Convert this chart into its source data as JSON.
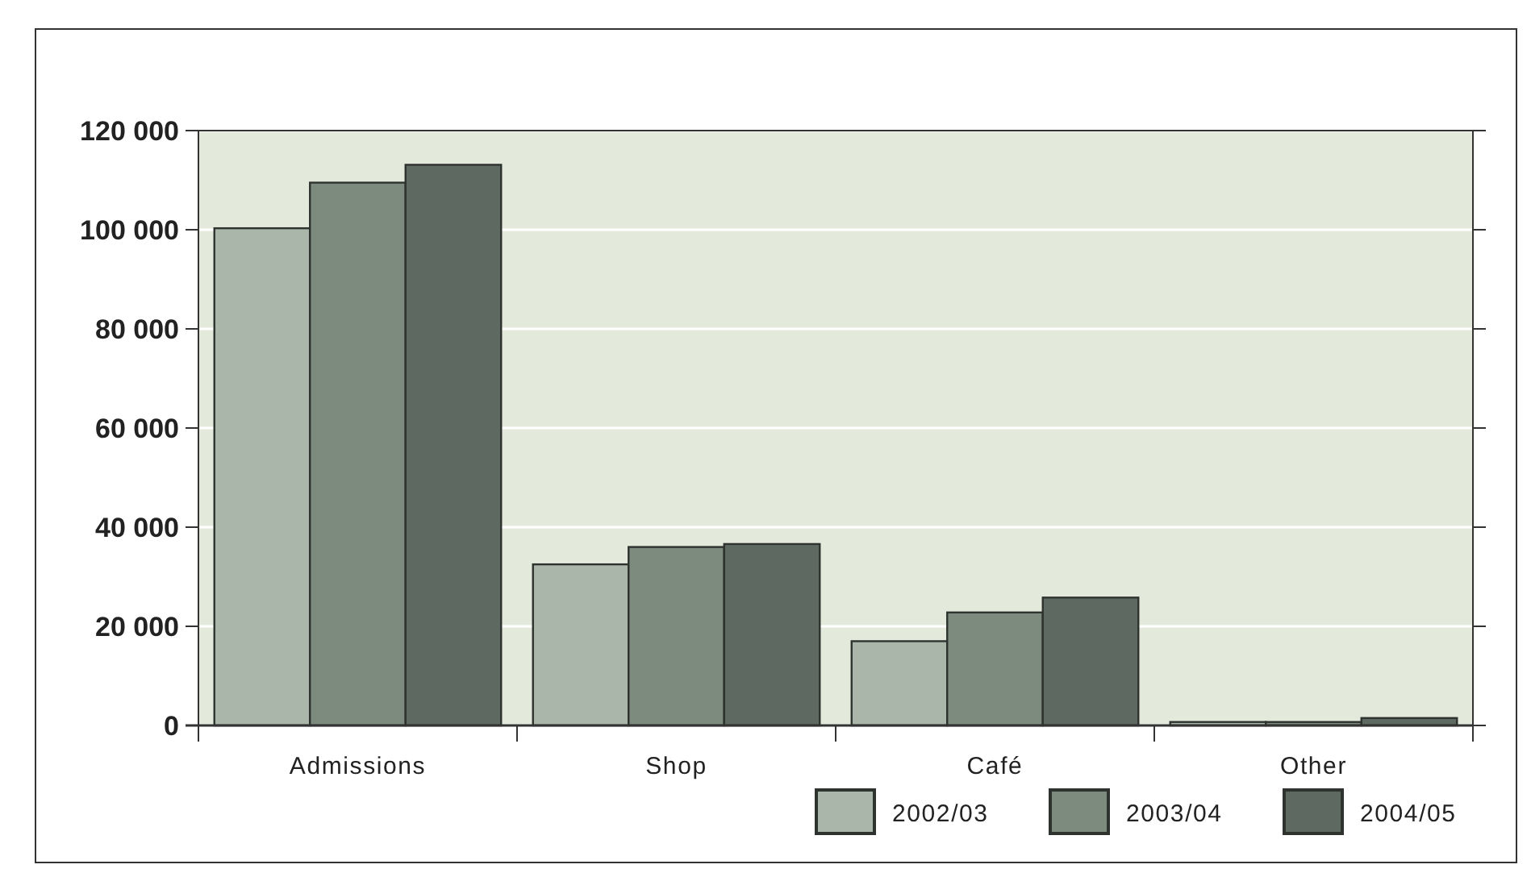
{
  "chart_data": {
    "type": "bar",
    "categories": [
      "Admissions",
      "Shop",
      "Café",
      "Other"
    ],
    "series": [
      {
        "name": "2002/03",
        "color": "#a9b6a9",
        "values": [
          100300,
          32500,
          17000,
          700
        ]
      },
      {
        "name": "2003/04",
        "color": "#7c8b7e",
        "values": [
          109500,
          36000,
          22800,
          700
        ]
      },
      {
        "name": "2004/05",
        "color": "#5e6a61",
        "values": [
          113100,
          36600,
          25800,
          1500
        ]
      }
    ],
    "ylim": [
      0,
      120000
    ],
    "yticks": [
      {
        "value": 0,
        "label": "0"
      },
      {
        "value": 20000,
        "label": "20 000"
      },
      {
        "value": 40000,
        "label": "40 000"
      },
      {
        "value": 60000,
        "label": "60 000"
      },
      {
        "value": 80000,
        "label": "80 000"
      },
      {
        "value": 100000,
        "label": "100 000"
      },
      {
        "value": 120000,
        "label": "120 000"
      }
    ],
    "grid": "y",
    "legend": "bottom right"
  }
}
